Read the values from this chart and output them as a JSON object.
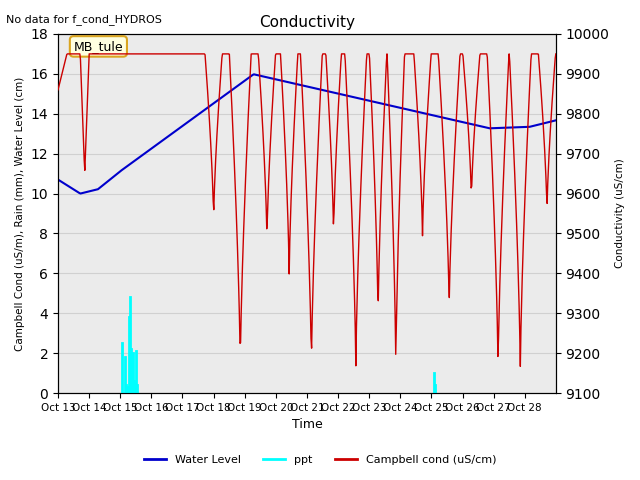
{
  "title": "Conductivity",
  "top_left_text": "No data for f_cond_HYDROS",
  "xlabel": "Time",
  "ylabel_left": "Campbell Cond (uS/m), Rain (mm), Water Level (cm)",
  "ylabel_right": "Conductivity (uS/cm)",
  "ylim_left": [
    0,
    18
  ],
  "ylim_right": [
    9100,
    10000
  ],
  "yticks_left": [
    0,
    2,
    4,
    6,
    8,
    10,
    12,
    14,
    16,
    18
  ],
  "yticks_right": [
    9100,
    9200,
    9300,
    9400,
    9500,
    9600,
    9700,
    9800,
    9900,
    10000
  ],
  "xtick_labels": [
    "Oct 13",
    "Oct 14",
    "Oct 15",
    "Oct 16",
    "Oct 17",
    "Oct 18",
    "Oct 19",
    "Oct 20",
    "Oct 21",
    "Oct 22",
    "Oct 23",
    "Oct 24",
    "Oct 25",
    "Oct 26",
    "Oct 27",
    "Oct 28"
  ],
  "xtick_positions": [
    0,
    7,
    14,
    21,
    28,
    35,
    42,
    49,
    56,
    63,
    70,
    77,
    84,
    91,
    98,
    105
  ],
  "xlim": [
    0,
    112
  ],
  "annotation_box": "MB_tule",
  "background_color": "#ffffff",
  "plot_bg_color": "#ebebeb",
  "grid_color": "#d0d0d0",
  "water_level_color": "#0000cc",
  "ppt_color": "#00ffff",
  "campbell_color": "#cc0000",
  "legend_labels": [
    "Water Level",
    "ppt",
    "Campbell cond (uS/cm)"
  ]
}
